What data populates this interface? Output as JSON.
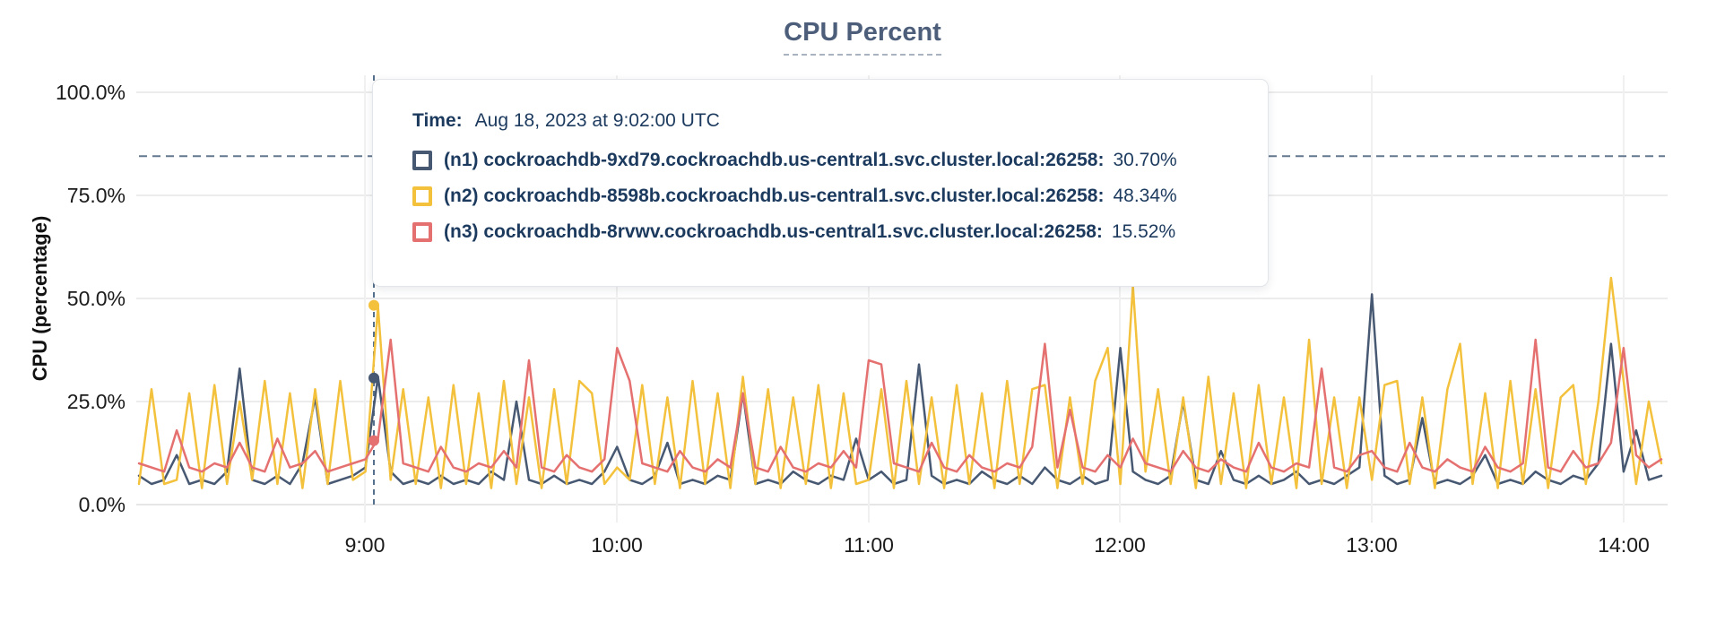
{
  "title": "CPU Percent",
  "tooltip": {
    "time_label": "Time:",
    "time_value": "Aug 18, 2023 at 9:02:00 UTC",
    "rows": [
      {
        "id": "n1",
        "label": "(n1) cockroachdb-9xd79.cockroachdb.us-central1.svc.cluster.local:26258:",
        "value": "30.70%",
        "color": "#475872"
      },
      {
        "id": "n2",
        "label": "(n2) cockroachdb-8598b.cockroachdb.us-central1.svc.cluster.local:26258:",
        "value": "48.34%",
        "color": "#F3C13C"
      },
      {
        "id": "n3",
        "label": "(n3) cockroachdb-8rvwv.cockroachdb.us-central1.svc.cluster.local:26258:",
        "value": "15.52%",
        "color": "#E57070"
      }
    ]
  },
  "axes": {
    "ylabel": "CPU (percentage)",
    "y_ticks_top_to_bottom": [
      "100.0%",
      "75.0%",
      "50.0%",
      "25.0%",
      "0.0%"
    ],
    "x_ticks": [
      "9:00",
      "10:00",
      "11:00",
      "12:00",
      "13:00",
      "14:00"
    ]
  },
  "chart_data": {
    "type": "line",
    "title": "CPU Percent",
    "xlabel": "",
    "ylabel": "CPU (percentage)",
    "ylim": [
      0,
      100
    ],
    "y_tick_percents": [
      0,
      25,
      50,
      75,
      100
    ],
    "x_tick_labels": [
      "9:00",
      "10:00",
      "11:00",
      "12:00",
      "13:00",
      "14:00"
    ],
    "x_tick_minutes": [
      540,
      600,
      660,
      720,
      780,
      840
    ],
    "x_range_minutes": [
      486,
      849
    ],
    "sample_interval_minutes": 3,
    "grid": true,
    "threshold_line_percent": 84.5,
    "hover": {
      "time_label": "Aug 18, 2023 at 9:02:00 UTC",
      "time_minutes": 542,
      "values": {
        "n1": 30.7,
        "n2": 48.34,
        "n3": 15.52
      }
    },
    "series": [
      {
        "id": "n1",
        "name": "(n1) cockroachdb-9xd79.cockroachdb.us-central1.svc.cluster.local:26258",
        "color": "#475872",
        "values": [
          7,
          5,
          6,
          12,
          5,
          6,
          5,
          8,
          33,
          6,
          5,
          7,
          5,
          10,
          26,
          5,
          6,
          7,
          9,
          31,
          8,
          5,
          6,
          5,
          7,
          5,
          6,
          5,
          8,
          6,
          25,
          6,
          5,
          7,
          5,
          6,
          5,
          8,
          14,
          6,
          5,
          7,
          15,
          5,
          6,
          5,
          7,
          6,
          27,
          5,
          6,
          5,
          8,
          6,
          5,
          7,
          6,
          16,
          6,
          8,
          5,
          6,
          34,
          7,
          5,
          6,
          5,
          8,
          6,
          5,
          7,
          5,
          9,
          6,
          5,
          7,
          5,
          6,
          38,
          8,
          6,
          5,
          7,
          25,
          6,
          5,
          13,
          6,
          5,
          7,
          5,
          6,
          8,
          5,
          6,
          5,
          7,
          9,
          51,
          7,
          5,
          6,
          21,
          5,
          6,
          5,
          7,
          12,
          5,
          6,
          5,
          8,
          6,
          5,
          7,
          6,
          10,
          39,
          8,
          18,
          6,
          7
        ]
      },
      {
        "id": "n2",
        "name": "(n2) cockroachdb-8598b.cockroachdb.us-central1.svc.cluster.local:26258",
        "color": "#F3C13C",
        "values": [
          5,
          28,
          5,
          6,
          27,
          4,
          29,
          5,
          25,
          6,
          30,
          5,
          27,
          4,
          28,
          5,
          30,
          6,
          8,
          48,
          6,
          28,
          5,
          26,
          4,
          29,
          5,
          27,
          4,
          30,
          5,
          26,
          4,
          28,
          5,
          30,
          27,
          5,
          9,
          6,
          29,
          5,
          26,
          4,
          30,
          5,
          27,
          4,
          31,
          5,
          28,
          4,
          26,
          5,
          29,
          4,
          27,
          5,
          6,
          28,
          4,
          30,
          5,
          26,
          4,
          29,
          5,
          27,
          4,
          30,
          5,
          28,
          29,
          4,
          26,
          5,
          30,
          38,
          5,
          53,
          8,
          28,
          5,
          26,
          4,
          31,
          5,
          27,
          4,
          29,
          5,
          26,
          4,
          40,
          5,
          26,
          4,
          26,
          6,
          29,
          30,
          5,
          26,
          4,
          28,
          39,
          5,
          27,
          4,
          30,
          5,
          28,
          4,
          26,
          29,
          5,
          25,
          55,
          30,
          5,
          25,
          10
        ]
      },
      {
        "id": "n3",
        "name": "(n3) cockroachdb-8rvwv.cockroachdb.us-central1.svc.cluster.local:26258",
        "color": "#E57070",
        "values": [
          10,
          9,
          8,
          18,
          9,
          8,
          10,
          9,
          15,
          9,
          8,
          16,
          9,
          10,
          13,
          8,
          9,
          10,
          11,
          16,
          40,
          10,
          9,
          8,
          14,
          9,
          8,
          10,
          9,
          13,
          9,
          35,
          9,
          8,
          12,
          9,
          8,
          11,
          38,
          30,
          10,
          9,
          8,
          13,
          9,
          8,
          11,
          9,
          27,
          9,
          8,
          14,
          9,
          8,
          10,
          9,
          13,
          9,
          35,
          34,
          10,
          9,
          8,
          15,
          9,
          8,
          12,
          9,
          8,
          10,
          9,
          14,
          39,
          9,
          23,
          9,
          8,
          12,
          9,
          16,
          10,
          9,
          8,
          13,
          9,
          8,
          11,
          9,
          8,
          15,
          9,
          8,
          10,
          9,
          33,
          9,
          8,
          12,
          13,
          9,
          8,
          15,
          9,
          8,
          11,
          9,
          8,
          14,
          9,
          8,
          10,
          40,
          9,
          8,
          13,
          9,
          10,
          15,
          38,
          12,
          9,
          11
        ]
      }
    ],
    "legend_position": "tooltip-overlay"
  },
  "colors": {
    "grid_h": "#ececec",
    "grid_v": "#f0f0f0",
    "baseline": "#e6e6e6",
    "dashed_threshold": "#64798f",
    "dashed_hover": "#54708c",
    "title": "#4d5e7b",
    "tooltip_text": "#1c3a5e"
  }
}
